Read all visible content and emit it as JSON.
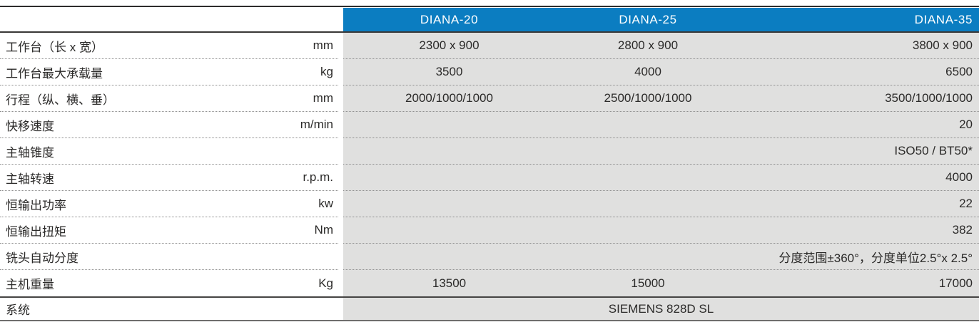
{
  "table": {
    "header": {
      "models": [
        "DIANA-20",
        "DIANA-25",
        "DIANA-35"
      ]
    },
    "rows": [
      {
        "label": "工作台（长 x 宽）",
        "unit": "mm",
        "values": [
          "2300 x 900",
          "2800 x 900",
          "3800 x 900"
        ]
      },
      {
        "label": "工作台最大承载量",
        "unit": "kg",
        "values": [
          "3500",
          "4000",
          "6500"
        ]
      },
      {
        "label": "行程（纵、横、垂）",
        "unit": "mm",
        "values": [
          "2000/1000/1000",
          "2500/1000/1000",
          "3500/1000/1000"
        ]
      },
      {
        "label": "快移速度",
        "unit": "m/min",
        "value": "20"
      },
      {
        "label": "主轴锥度",
        "unit": "",
        "value": "ISO50 / BT50*"
      },
      {
        "label": "主轴转速",
        "unit": "r.p.m.",
        "value": "4000"
      },
      {
        "label": "恒输出功率",
        "unit": "kw",
        "value": "22"
      },
      {
        "label": "恒输出扭矩",
        "unit": "Nm",
        "value": "382"
      },
      {
        "label": "铣头自动分度",
        "unit": "",
        "value": "分度范围±360°，分度单位2.5°x 2.5°"
      },
      {
        "label": "主机重量",
        "unit": "Kg",
        "values": [
          "13500",
          "15000",
          "17000"
        ]
      },
      {
        "label": "系统",
        "unit": "",
        "value": "SIEMENS 828D SL"
      }
    ],
    "colors": {
      "header_bg": "#0b7dc1",
      "header_text": "#ffffff",
      "data_bg": "#e0e0df",
      "text": "#2b2a29"
    }
  }
}
